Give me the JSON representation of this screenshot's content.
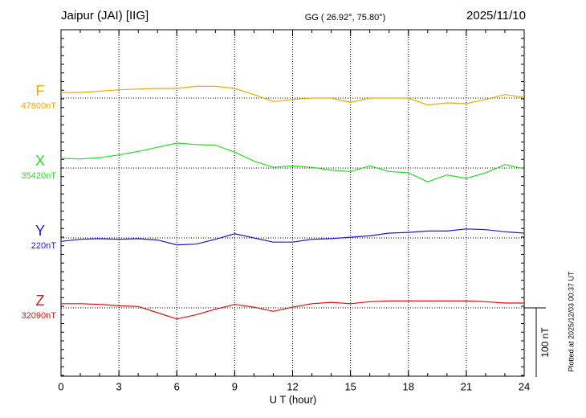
{
  "chart_data": {
    "type": "line",
    "title": "Jaipur (JAI)  [IIG]",
    "subtitle": "GG ( 26.92°,  75.80°)",
    "date": "2025/11/10",
    "xlabel": "U T (hour)",
    "footnote": "Plotted at 2025/12/03 00:37 UT",
    "x": [
      0,
      1,
      2,
      3,
      4,
      5,
      6,
      7,
      8,
      9,
      10,
      11,
      12,
      13,
      14,
      15,
      16,
      17,
      18,
      19,
      20,
      21,
      22,
      23,
      24
    ],
    "xlim": [
      0,
      24
    ],
    "xticks": [
      0,
      3,
      6,
      9,
      12,
      15,
      18,
      21,
      24
    ],
    "scale_bar": {
      "value": 100,
      "label": "100 nT"
    },
    "series": [
      {
        "name": "F",
        "baseline_label": "47800nT",
        "color": "#f5a800",
        "values": [
          8,
          8,
          10,
          12,
          13,
          14,
          14,
          17,
          17,
          14,
          5,
          -5,
          -2,
          0,
          0,
          -6,
          0,
          0,
          0,
          -10,
          -7,
          -8,
          -2,
          5,
          1
        ]
      },
      {
        "name": "X",
        "baseline_label": "35420nT",
        "color": "#22e022",
        "values": [
          14,
          13,
          15,
          19,
          24,
          30,
          36,
          34,
          33,
          23,
          10,
          1,
          3,
          1,
          -3,
          -5,
          3,
          -5,
          -7,
          -20,
          -10,
          -15,
          -7,
          5,
          -1
        ]
      },
      {
        "name": "Y",
        "baseline_label": "220nT",
        "color": "#1a1acc",
        "values": [
          -5,
          -2,
          -1,
          -2,
          -1,
          -3,
          -10,
          -9,
          -2,
          6,
          0,
          -6,
          -6,
          -2,
          -1,
          1,
          3,
          7,
          8,
          10,
          10,
          13,
          12,
          9,
          7
        ]
      },
      {
        "name": "Z",
        "baseline_label": "32090nT",
        "color": "#e01010",
        "values": [
          6,
          6,
          5,
          3,
          2,
          -7,
          -16,
          -10,
          -2,
          5,
          1,
          -5,
          1,
          6,
          8,
          6,
          9,
          10,
          10,
          10,
          10,
          10,
          9,
          7,
          7
        ]
      }
    ]
  }
}
